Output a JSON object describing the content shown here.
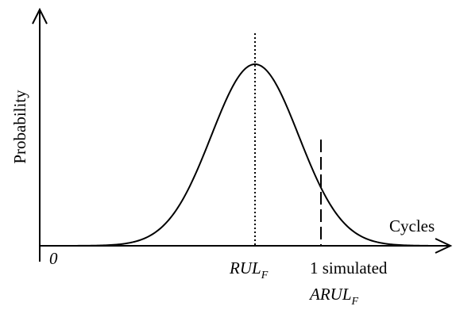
{
  "diagram": {
    "y_axis_label": "Probability",
    "x_axis_label": "Cycles",
    "origin_label": "0",
    "peak_label": {
      "main": "RUL",
      "sub": "F"
    },
    "simulated_label": {
      "line1": "1 simulated",
      "main": "ARUL",
      "sub": "F"
    }
  }
}
